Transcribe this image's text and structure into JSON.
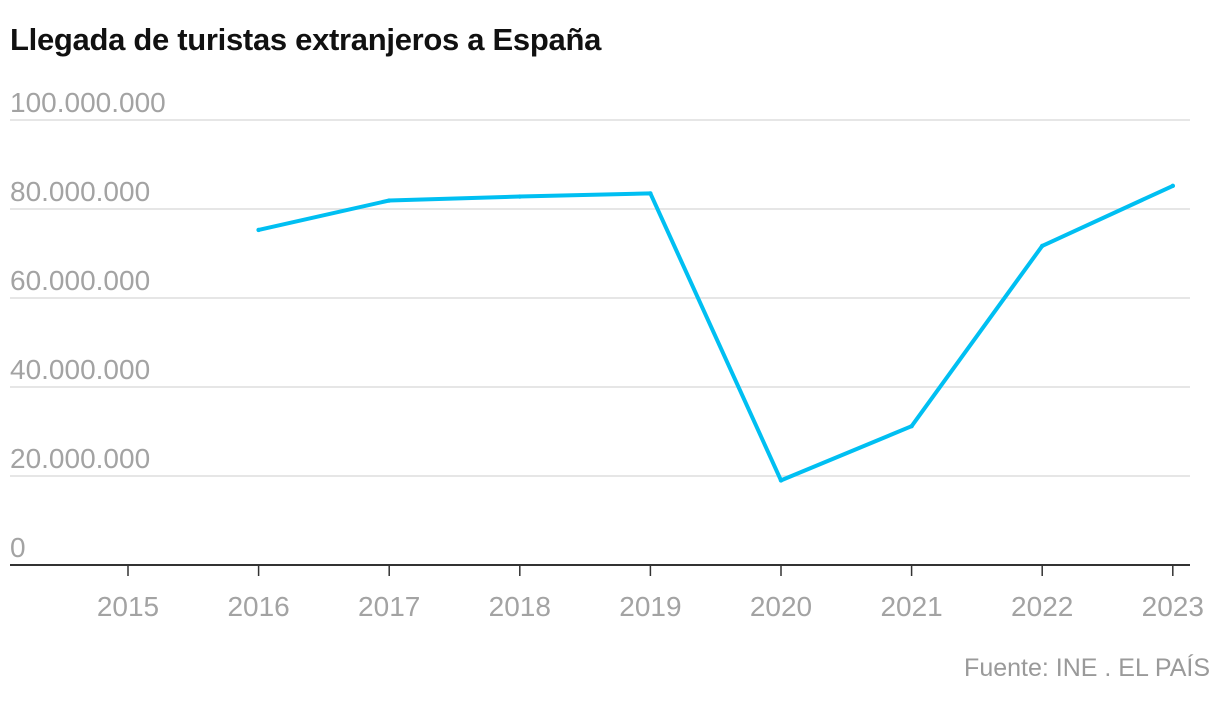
{
  "header": {
    "title": "Llegada de turistas extranjeros a España"
  },
  "footer": {
    "source": "Fuente: INE . EL PAÍS"
  },
  "chart_data": {
    "type": "line",
    "title": "Llegada de turistas extranjeros a España",
    "xlabel": "",
    "ylabel": "",
    "x_ticks": [
      "2015",
      "2016",
      "2017",
      "2018",
      "2019",
      "2020",
      "2021",
      "2022",
      "2023"
    ],
    "y_ticks": [
      "0",
      "20.000.000",
      "40.000.000",
      "60.000.000",
      "80.000.000",
      "100.000.000"
    ],
    "ylim": [
      0,
      100000000
    ],
    "xlim": [
      2015,
      2023
    ],
    "grid": true,
    "colors": {
      "line": "#00bff2",
      "grid": "#dddddd",
      "axis": "#333333",
      "tick_label": "#a3a3a3"
    },
    "series": [
      {
        "x": [
          2016,
          2017,
          2018,
          2019,
          2020,
          2021,
          2022,
          2023
        ],
        "values": [
          75300000,
          81900000,
          82800000,
          83500000,
          19000000,
          31200000,
          71700000,
          85200000
        ]
      }
    ]
  }
}
